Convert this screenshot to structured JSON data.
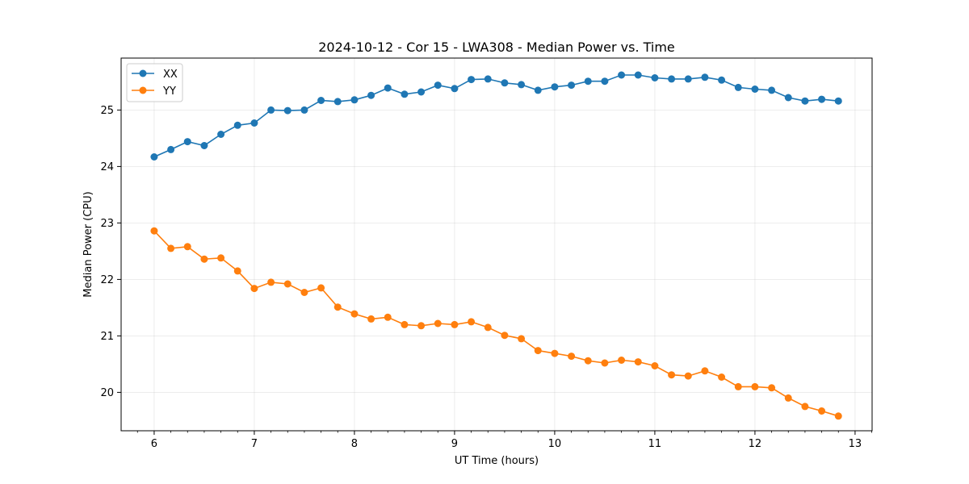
{
  "chart_data": {
    "type": "line",
    "title": "2024-10-12 - Cor 15 - LWA308 - Median Power vs. Time",
    "xlabel": "UT Time (hours)",
    "ylabel": "Median Power (CPU)",
    "xlim": [
      5.67,
      13.17
    ],
    "ylim": [
      19.32,
      25.92
    ],
    "xticks": [
      6,
      7,
      8,
      9,
      10,
      11,
      12,
      13
    ],
    "yticks": [
      20,
      21,
      22,
      23,
      24,
      25
    ],
    "grid": true,
    "legend_position": "top-left",
    "x": [
      6.0,
      6.1667,
      6.3333,
      6.5,
      6.6667,
      6.8333,
      7.0,
      7.1667,
      7.3333,
      7.5,
      7.6667,
      7.8333,
      8.0,
      8.1667,
      8.3333,
      8.5,
      8.6667,
      8.8333,
      9.0,
      9.1667,
      9.3333,
      9.5,
      9.6667,
      9.8333,
      10.0,
      10.1667,
      10.3333,
      10.5,
      10.6667,
      10.8333,
      11.0,
      11.1667,
      11.3333,
      11.5,
      11.6667,
      11.8333,
      12.0,
      12.1667,
      12.3333,
      12.5,
      12.6667,
      12.8333
    ],
    "series": [
      {
        "name": "XX",
        "color": "#1f77b4",
        "values": [
          24.17,
          24.3,
          24.44,
          24.37,
          24.57,
          24.73,
          24.77,
          25.0,
          24.99,
          25.0,
          25.17,
          25.15,
          25.18,
          25.26,
          25.39,
          25.28,
          25.32,
          25.44,
          25.38,
          25.54,
          25.55,
          25.48,
          25.45,
          25.35,
          25.41,
          25.44,
          25.51,
          25.51,
          25.62,
          25.62,
          25.57,
          25.55,
          25.55,
          25.58,
          25.53,
          25.4,
          25.37,
          25.35,
          25.22,
          25.16,
          25.19,
          25.16
        ]
      },
      {
        "name": "YY",
        "color": "#ff7f0e",
        "values": [
          22.86,
          22.55,
          22.58,
          22.36,
          22.38,
          22.15,
          21.84,
          21.95,
          21.92,
          21.77,
          21.85,
          21.51,
          21.39,
          21.3,
          21.33,
          21.2,
          21.18,
          21.22,
          21.2,
          21.25,
          21.15,
          21.01,
          20.95,
          20.74,
          20.69,
          20.64,
          20.56,
          20.52,
          20.57,
          20.54,
          20.47,
          20.31,
          20.29,
          20.38,
          20.27,
          20.1,
          20.1,
          20.08,
          19.9,
          19.75,
          19.67,
          19.58
        ]
      }
    ]
  }
}
